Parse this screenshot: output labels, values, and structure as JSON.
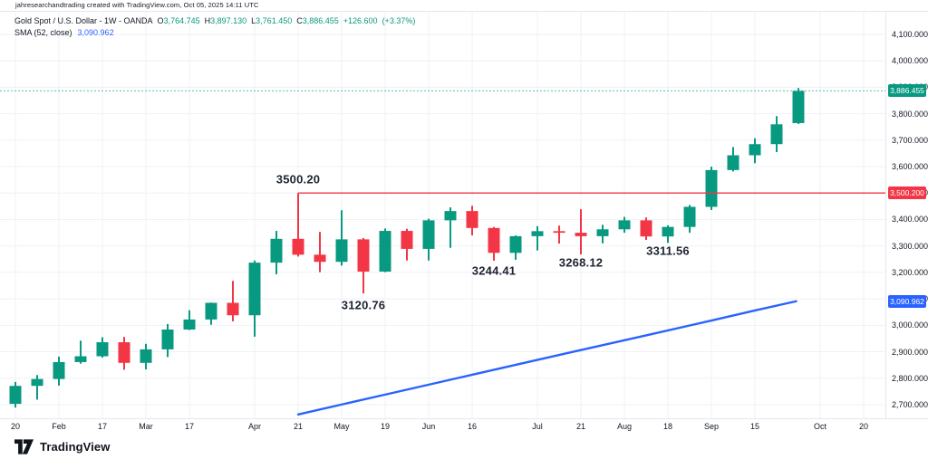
{
  "header": {
    "attribution": "jahresearchandtrading created with TradingView.com, Oct 05, 2025 14:11 UTC"
  },
  "legend": {
    "title": "Gold Spot / U.S. Dollar - 1W - OANDA",
    "open_label": "O",
    "open": "3,764.745",
    "high_label": "H",
    "high": "3,897.130",
    "low_label": "L",
    "low": "3,761.450",
    "close_label": "C",
    "close": "3,886.455",
    "change": "+126.600",
    "change_percent": "(+3.37%)",
    "sma_label": "SMA (52, close)",
    "sma_value": "3,090.962"
  },
  "colors": {
    "up": "#089981",
    "down": "#f23645",
    "sma": "#2962ff",
    "grid": "#eef1f6",
    "axis_border": "#e4e7ee",
    "text": "#131722"
  },
  "chart_data": {
    "type": "candlestick",
    "title": "Gold Spot / U.S. Dollar",
    "interval": "1W",
    "exchange": "OANDA",
    "ylim": [
      2648,
      4186
    ],
    "grid": true,
    "price_ticks": [
      {
        "label": "4,100.000",
        "price": 4100
      },
      {
        "label": "4,000.000",
        "price": 4000
      },
      {
        "label": "3,900.000",
        "price": 3900
      },
      {
        "label": "3,800.000",
        "price": 3800
      },
      {
        "label": "3,700.000",
        "price": 3700
      },
      {
        "label": "3,600.000",
        "price": 3600
      },
      {
        "label": "3,500.000",
        "price": 3500
      },
      {
        "label": "3,400.000",
        "price": 3400
      },
      {
        "label": "3,300.000",
        "price": 3300
      },
      {
        "label": "3,200.000",
        "price": 3200
      },
      {
        "label": "3,100.000",
        "price": 3100
      },
      {
        "label": "3,000.000",
        "price": 3000
      },
      {
        "label": "2,900.000",
        "price": 2900
      },
      {
        "label": "2,800.000",
        "price": 2800
      },
      {
        "label": "2,700.000",
        "price": 2700
      }
    ],
    "x_ticks": [
      {
        "label": "20",
        "week": 0
      },
      {
        "label": "Feb",
        "week": 2
      },
      {
        "label": "17",
        "week": 4
      },
      {
        "label": "Mar",
        "week": 6
      },
      {
        "label": "17",
        "week": 8
      },
      {
        "label": "Apr",
        "week": 11
      },
      {
        "label": "21",
        "week": 13
      },
      {
        "label": "May",
        "week": 15
      },
      {
        "label": "19",
        "week": 17
      },
      {
        "label": "Jun",
        "week": 19
      },
      {
        "label": "16",
        "week": 21
      },
      {
        "label": "Jul",
        "week": 24
      },
      {
        "label": "21",
        "week": 26
      },
      {
        "label": "Aug",
        "week": 28
      },
      {
        "label": "18",
        "week": 30
      },
      {
        "label": "Sep",
        "week": 32
      },
      {
        "label": "15",
        "week": 34
      },
      {
        "label": "Oct",
        "week": 37
      },
      {
        "label": "20",
        "week": 39
      }
    ],
    "candles": [
      {
        "date": "Jan 20",
        "ohlc": [
          2703,
          2786,
          2689,
          2771
        ]
      },
      {
        "date": "Jan 27",
        "ohlc": [
          2771,
          2812,
          2719,
          2797
        ]
      },
      {
        "date": "Feb 3",
        "ohlc": [
          2797,
          2882,
          2772,
          2861
        ]
      },
      {
        "date": "Feb 10",
        "ohlc": [
          2861,
          2942,
          2855,
          2883
        ]
      },
      {
        "date": "Feb 17",
        "ohlc": [
          2883,
          2955,
          2878,
          2936
        ]
      },
      {
        "date": "Feb 24",
        "ohlc": [
          2936,
          2956,
          2832,
          2858
        ]
      },
      {
        "date": "Mar 3",
        "ohlc": [
          2858,
          2930,
          2833,
          2909
        ]
      },
      {
        "date": "Mar 10",
        "ohlc": [
          2909,
          3005,
          2880,
          2984
        ]
      },
      {
        "date": "Mar 17",
        "ohlc": [
          2984,
          3057,
          2982,
          3022
        ]
      },
      {
        "date": "Mar 24",
        "ohlc": [
          3022,
          3086,
          3002,
          3085
        ]
      },
      {
        "date": "Mar 31",
        "ohlc": [
          3085,
          3168,
          3015,
          3038
        ]
      },
      {
        "date": "Apr 7",
        "ohlc": [
          3038,
          3245,
          2957,
          3237
        ]
      },
      {
        "date": "Apr 14",
        "ohlc": [
          3237,
          3357,
          3193,
          3327
        ]
      },
      {
        "date": "Apr 21",
        "ohlc": [
          3327,
          3500.2,
          3260,
          3267
        ]
      },
      {
        "date": "Apr 28",
        "ohlc": [
          3267,
          3353,
          3201,
          3240
        ]
      },
      {
        "date": "May 5",
        "ohlc": [
          3240,
          3435,
          3226,
          3325
        ]
      },
      {
        "date": "May 12",
        "ohlc": [
          3325,
          3330,
          3120.76,
          3203
        ]
      },
      {
        "date": "May 19",
        "ohlc": [
          3203,
          3366,
          3201,
          3357
        ]
      },
      {
        "date": "May 26",
        "ohlc": [
          3357,
          3365,
          3245,
          3289
        ]
      },
      {
        "date": "Jun 2",
        "ohlc": [
          3289,
          3403,
          3245,
          3397
        ]
      },
      {
        "date": "Jun 9",
        "ohlc": [
          3397,
          3446,
          3293,
          3432
        ]
      },
      {
        "date": "Jun 16",
        "ohlc": [
          3432,
          3452,
          3340,
          3368
        ]
      },
      {
        "date": "Jun 23",
        "ohlc": [
          3368,
          3372,
          3244.41,
          3274
        ]
      },
      {
        "date": "Jun 30",
        "ohlc": [
          3274,
          3340,
          3248,
          3337
        ]
      },
      {
        "date": "Jul 7",
        "ohlc": [
          3337,
          3375,
          3283,
          3356
        ]
      },
      {
        "date": "Jul 14",
        "ohlc": [
          3356,
          3377,
          3309,
          3350
        ]
      },
      {
        "date": "Jul 21",
        "ohlc": [
          3350,
          3439,
          3268.12,
          3337
        ]
      },
      {
        "date": "Jul 28",
        "ohlc": [
          3337,
          3380,
          3310,
          3363
        ]
      },
      {
        "date": "Aug 4",
        "ohlc": [
          3363,
          3410,
          3350,
          3397
        ]
      },
      {
        "date": "Aug 11",
        "ohlc": [
          3397,
          3408,
          3323,
          3336
        ]
      },
      {
        "date": "Aug 18",
        "ohlc": [
          3336,
          3378,
          3311.56,
          3372
        ]
      },
      {
        "date": "Aug 25",
        "ohlc": [
          3372,
          3455,
          3350,
          3448
        ]
      },
      {
        "date": "Sep 1",
        "ohlc": [
          3448,
          3600,
          3436,
          3587
        ]
      },
      {
        "date": "Sep 8",
        "ohlc": [
          3587,
          3674,
          3582,
          3643
        ]
      },
      {
        "date": "Sep 15",
        "ohlc": [
          3643,
          3707,
          3613,
          3685
        ]
      },
      {
        "date": "Sep 22",
        "ohlc": [
          3685,
          3791,
          3655,
          3760
        ]
      },
      {
        "date": "Sep 29",
        "ohlc": [
          3764.745,
          3897.13,
          3761.45,
          3886.455
        ]
      }
    ],
    "sma": {
      "label": "SMA (52, close)",
      "period": 52,
      "source": "close",
      "last_value": 3090.962,
      "points": [
        {
          "week": 13.0,
          "price": 2663
        },
        {
          "week": 17.0,
          "price": 2738
        },
        {
          "week": 21.0,
          "price": 2813
        },
        {
          "week": 25.0,
          "price": 2888
        },
        {
          "week": 29.0,
          "price": 2962
        },
        {
          "week": 32.0,
          "price": 3018
        },
        {
          "week": 34.0,
          "price": 3056
        },
        {
          "week": 35.9,
          "price": 3091
        }
      ]
    },
    "levels": {
      "resistance_line": {
        "price": 3500.2,
        "from_week": 13,
        "style": "solid",
        "color_key": "down"
      },
      "last_price_line": {
        "price": 3886.455,
        "style": "dashed",
        "color_key": "up"
      }
    },
    "annotations": [
      {
        "text": "3500.20",
        "week": 13,
        "price": 3553
      },
      {
        "text": "3120.76",
        "week": 16,
        "price": 3077
      },
      {
        "text": "3244.41",
        "week": 22,
        "price": 3206
      },
      {
        "text": "3268.12",
        "week": 26,
        "price": 3237
      },
      {
        "text": "3311.56",
        "week": 30,
        "price": 3283
      }
    ]
  },
  "price_axis_badges": [
    {
      "name": "last-price",
      "label": "3,886.455",
      "price": 3886.455,
      "color_key": "up"
    },
    {
      "name": "resistance-level",
      "label": "3,500.200",
      "price": 3500.2,
      "color_key": "down"
    },
    {
      "name": "sma-value",
      "label": "3,090.962",
      "price": 3090.962,
      "color_key": "sma"
    }
  ],
  "footer": {
    "brand": "TradingView"
  }
}
